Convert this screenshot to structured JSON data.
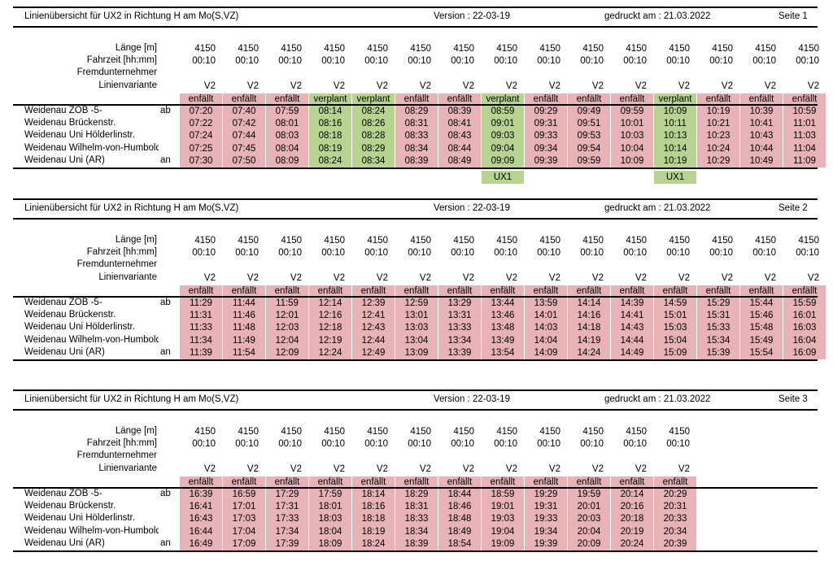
{
  "header": {
    "title": "Linienübersicht für UX2 in Richtung H am Mo(S,VZ)",
    "version": "Version : 22-03-19",
    "printed": "gedruckt am : 21.03.2022",
    "page_label": "Seite"
  },
  "row_labels": {
    "length": "Länge [m]",
    "duration": "Fahrzeit [hh:mm]",
    "contractor": "Fremdunternehmer",
    "variant": "Linienvariante"
  },
  "stops": [
    {
      "name": "Weidenau ZOB -5-",
      "tag": "ab"
    },
    {
      "name": "Weidenau Brückenstr.",
      "tag": ""
    },
    {
      "name": "Weidenau Uni Hölderlinstr.",
      "tag": ""
    },
    {
      "name": "Weidenau Wilhelm-von-Humboldt",
      "tag": ""
    },
    {
      "name": "Weidenau Uni (AR)",
      "tag": "an"
    }
  ],
  "pages": [
    {
      "number": "1",
      "trips": [
        {
          "length": "4150",
          "duration": "00:10",
          "variant": "V2",
          "status": "enfällt",
          "times": [
            "07:20",
            "07:22",
            "07:24",
            "07:25",
            "07:30"
          ],
          "extra": ""
        },
        {
          "length": "4150",
          "duration": "00:10",
          "variant": "V2",
          "status": "enfällt",
          "times": [
            "07:40",
            "07:42",
            "07:44",
            "07:45",
            "07:50"
          ],
          "extra": ""
        },
        {
          "length": "4150",
          "duration": "00:10",
          "variant": "V2",
          "status": "enfällt",
          "times": [
            "07:59",
            "08:01",
            "08:03",
            "08:04",
            "08:09"
          ],
          "extra": ""
        },
        {
          "length": "4150",
          "duration": "00:10",
          "variant": "V2",
          "status": "verplant",
          "times": [
            "08:14",
            "08:16",
            "08:18",
            "08:19",
            "08:24"
          ],
          "extra": ""
        },
        {
          "length": "4150",
          "duration": "00:10",
          "variant": "V2",
          "status": "verplant",
          "times": [
            "08:24",
            "08:26",
            "08:28",
            "08:29",
            "08:34"
          ],
          "extra": ""
        },
        {
          "length": "4150",
          "duration": "00:10",
          "variant": "V2",
          "status": "enfällt",
          "times": [
            "08:29",
            "08:31",
            "08:33",
            "08:34",
            "08:39"
          ],
          "extra": ""
        },
        {
          "length": "4150",
          "duration": "00:10",
          "variant": "V2",
          "status": "enfällt",
          "times": [
            "08:39",
            "08:41",
            "08:43",
            "08:44",
            "08:49"
          ],
          "extra": ""
        },
        {
          "length": "4150",
          "duration": "00:10",
          "variant": "V2",
          "status": "verplant",
          "times": [
            "08:59",
            "09:01",
            "09:03",
            "09:04",
            "09:09"
          ],
          "extra": "UX1"
        },
        {
          "length": "4150",
          "duration": "00:10",
          "variant": "V2",
          "status": "enfällt",
          "times": [
            "09:29",
            "09:31",
            "09:33",
            "09:34",
            "09:39"
          ],
          "extra": ""
        },
        {
          "length": "4150",
          "duration": "00:10",
          "variant": "V2",
          "status": "enfällt",
          "times": [
            "09:49",
            "09:51",
            "09:53",
            "09:54",
            "09:59"
          ],
          "extra": ""
        },
        {
          "length": "4150",
          "duration": "00:10",
          "variant": "V2",
          "status": "enfällt",
          "times": [
            "09:59",
            "10:01",
            "10:03",
            "10:04",
            "10:09"
          ],
          "extra": ""
        },
        {
          "length": "4150",
          "duration": "00:10",
          "variant": "V2",
          "status": "verplant",
          "times": [
            "10:09",
            "10:11",
            "10:13",
            "10:14",
            "10:19"
          ],
          "extra": "UX1"
        },
        {
          "length": "4150",
          "duration": "00:10",
          "variant": "V2",
          "status": "enfällt",
          "times": [
            "10:19",
            "10:21",
            "10:23",
            "10:24",
            "10:29"
          ],
          "extra": ""
        },
        {
          "length": "4150",
          "duration": "00:10",
          "variant": "V2",
          "status": "enfällt",
          "times": [
            "10:39",
            "10:41",
            "10:43",
            "10:44",
            "10:49"
          ],
          "extra": ""
        },
        {
          "length": "4150",
          "duration": "00:10",
          "variant": "V2",
          "status": "enfällt",
          "times": [
            "10:59",
            "11:01",
            "11:03",
            "11:04",
            "11:09"
          ],
          "extra": ""
        }
      ]
    },
    {
      "number": "2",
      "trips": [
        {
          "length": "4150",
          "duration": "00:10",
          "variant": "V2",
          "status": "enfällt",
          "times": [
            "11:29",
            "11:31",
            "11:33",
            "11:34",
            "11:39"
          ],
          "extra": ""
        },
        {
          "length": "4150",
          "duration": "00:10",
          "variant": "V2",
          "status": "enfällt",
          "times": [
            "11:44",
            "11:46",
            "11:48",
            "11:49",
            "11:54"
          ],
          "extra": ""
        },
        {
          "length": "4150",
          "duration": "00:10",
          "variant": "V2",
          "status": "enfällt",
          "times": [
            "11:59",
            "12:01",
            "12:03",
            "12:04",
            "12:09"
          ],
          "extra": ""
        },
        {
          "length": "4150",
          "duration": "00:10",
          "variant": "V2",
          "status": "enfällt",
          "times": [
            "12:14",
            "12:16",
            "12:18",
            "12:19",
            "12:24"
          ],
          "extra": ""
        },
        {
          "length": "4150",
          "duration": "00:10",
          "variant": "V2",
          "status": "enfällt",
          "times": [
            "12:39",
            "12:41",
            "12:43",
            "12:44",
            "12:49"
          ],
          "extra": ""
        },
        {
          "length": "4150",
          "duration": "00:10",
          "variant": "V2",
          "status": "enfällt",
          "times": [
            "12:59",
            "13:01",
            "13:03",
            "13:04",
            "13:09"
          ],
          "extra": ""
        },
        {
          "length": "4150",
          "duration": "00:10",
          "variant": "V2",
          "status": "enfällt",
          "times": [
            "13:29",
            "13:31",
            "13:33",
            "13:34",
            "13:39"
          ],
          "extra": ""
        },
        {
          "length": "4150",
          "duration": "00:10",
          "variant": "V2",
          "status": "enfällt",
          "times": [
            "13:44",
            "13:46",
            "13:48",
            "13:49",
            "13:54"
          ],
          "extra": ""
        },
        {
          "length": "4150",
          "duration": "00:10",
          "variant": "V2",
          "status": "enfällt",
          "times": [
            "13:59",
            "14:01",
            "14:03",
            "14:04",
            "14:09"
          ],
          "extra": ""
        },
        {
          "length": "4150",
          "duration": "00:10",
          "variant": "V2",
          "status": "enfällt",
          "times": [
            "14:14",
            "14:16",
            "14:18",
            "14:19",
            "14:24"
          ],
          "extra": ""
        },
        {
          "length": "4150",
          "duration": "00:10",
          "variant": "V2",
          "status": "enfällt",
          "times": [
            "14:39",
            "14:41",
            "14:43",
            "14:44",
            "14:49"
          ],
          "extra": ""
        },
        {
          "length": "4150",
          "duration": "00:10",
          "variant": "V2",
          "status": "enfällt",
          "times": [
            "14:59",
            "15:01",
            "15:03",
            "15:04",
            "15:09"
          ],
          "extra": ""
        },
        {
          "length": "4150",
          "duration": "00:10",
          "variant": "V2",
          "status": "enfällt",
          "times": [
            "15:29",
            "15:31",
            "15:33",
            "15:34",
            "15:39"
          ],
          "extra": ""
        },
        {
          "length": "4150",
          "duration": "00:10",
          "variant": "V2",
          "status": "enfällt",
          "times": [
            "15:44",
            "15:46",
            "15:48",
            "15:49",
            "15:54"
          ],
          "extra": ""
        },
        {
          "length": "4150",
          "duration": "00:10",
          "variant": "V2",
          "status": "enfällt",
          "times": [
            "15:59",
            "16:01",
            "16:03",
            "16:04",
            "16:09"
          ],
          "extra": ""
        }
      ]
    },
    {
      "number": "3",
      "trips": [
        {
          "length": "4150",
          "duration": "00:10",
          "variant": "V2",
          "status": "enfällt",
          "times": [
            "16:39",
            "16:41",
            "16:43",
            "16:44",
            "16:49"
          ],
          "extra": ""
        },
        {
          "length": "4150",
          "duration": "00:10",
          "variant": "V2",
          "status": "enfällt",
          "times": [
            "16:59",
            "17:01",
            "17:03",
            "17:04",
            "17:09"
          ],
          "extra": ""
        },
        {
          "length": "4150",
          "duration": "00:10",
          "variant": "V2",
          "status": "enfällt",
          "times": [
            "17:29",
            "17:31",
            "17:33",
            "17:34",
            "17:39"
          ],
          "extra": ""
        },
        {
          "length": "4150",
          "duration": "00:10",
          "variant": "V2",
          "status": "enfällt",
          "times": [
            "17:59",
            "18:01",
            "18:03",
            "18:04",
            "18:09"
          ],
          "extra": ""
        },
        {
          "length": "4150",
          "duration": "00:10",
          "variant": "V2",
          "status": "enfällt",
          "times": [
            "18:14",
            "18:16",
            "18:18",
            "18:19",
            "18:24"
          ],
          "extra": ""
        },
        {
          "length": "4150",
          "duration": "00:10",
          "variant": "V2",
          "status": "enfällt",
          "times": [
            "18:29",
            "18:31",
            "18:33",
            "18:34",
            "18:39"
          ],
          "extra": ""
        },
        {
          "length": "4150",
          "duration": "00:10",
          "variant": "V2",
          "status": "enfällt",
          "times": [
            "18:44",
            "18:46",
            "18:48",
            "18:49",
            "18:54"
          ],
          "extra": ""
        },
        {
          "length": "4150",
          "duration": "00:10",
          "variant": "V2",
          "status": "enfällt",
          "times": [
            "18:59",
            "19:01",
            "19:03",
            "19:04",
            "19:09"
          ],
          "extra": ""
        },
        {
          "length": "4150",
          "duration": "00:10",
          "variant": "V2",
          "status": "enfällt",
          "times": [
            "19:29",
            "19:31",
            "19:33",
            "19:34",
            "19:39"
          ],
          "extra": ""
        },
        {
          "length": "4150",
          "duration": "00:10",
          "variant": "V2",
          "status": "enfällt",
          "times": [
            "19:59",
            "20:01",
            "20:03",
            "20:04",
            "20:09"
          ],
          "extra": ""
        },
        {
          "length": "4150",
          "duration": "00:10",
          "variant": "V2",
          "status": "enfällt",
          "times": [
            "20:14",
            "20:16",
            "20:18",
            "20:19",
            "20:24"
          ],
          "extra": ""
        },
        {
          "length": "4150",
          "duration": "00:10",
          "variant": "V2",
          "status": "enfällt",
          "times": [
            "20:29",
            "20:31",
            "20:33",
            "20:34",
            "20:39"
          ],
          "extra": ""
        }
      ]
    }
  ],
  "colors": {
    "cancelled": "#e8b3b6",
    "planned": "#b6d48f"
  }
}
